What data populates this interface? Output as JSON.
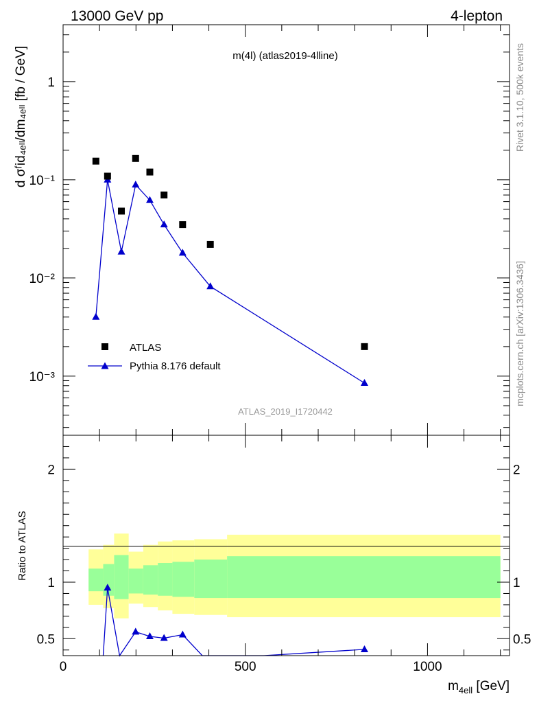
{
  "header": {
    "left": "13000 GeV pp",
    "right": "4-lepton"
  },
  "plot_title": "m(4l) (atlas2019-4lline)",
  "side_labels": {
    "upper": "Rivet 3.1.10,  500k events",
    "lower": "mcplots.cern.ch [arXiv:1306.3436]"
  },
  "analysis_id": "ATLAS_2019_I1720442",
  "colors": {
    "mc": "#0000cc",
    "band_inner": "#99ff99",
    "band_outer": "#ffff99"
  },
  "chart_data": [
    {
      "type": "scatter",
      "panel": "main",
      "ylabel": "d σᶠid₄ₑₗₗ/dm₄ₑₗₗ [fb / GeV]",
      "yscale": "log",
      "ylim": [
        0.00025,
        3.8
      ],
      "xlim": [
        0,
        1225
      ],
      "ytick_labels": [
        "1",
        "10⁻¹",
        "10⁻²",
        "10⁻³"
      ],
      "legend": {
        "position": "bottom-left"
      },
      "series": [
        {
          "name": "ATLAS",
          "marker": "square",
          "x": [
            90,
            122,
            160,
            199,
            238,
            277,
            328,
            404,
            827
          ],
          "y": [
            0.155,
            0.109,
            0.048,
            0.165,
            0.12,
            0.07,
            0.035,
            0.022,
            0.002
          ]
        },
        {
          "name": "Pythia 8.176 default",
          "marker": "triangle",
          "x": [
            90,
            122,
            160,
            199,
            238,
            277,
            328,
            404,
            827
          ],
          "y": [
            0.004,
            0.1,
            0.0185,
            0.089,
            0.062,
            0.035,
            0.018,
            0.0082,
            0.00085
          ]
        }
      ]
    },
    {
      "type": "line",
      "panel": "ratio",
      "ylabel": "Ratio to ATLAS",
      "xlabel": "m4ell [GeV]",
      "xlim": [
        0,
        1225
      ],
      "ylim": [
        0.35,
        2.3
      ],
      "xtick_labels": [
        "0",
        "500",
        "1000"
      ],
      "ytick_labels": [
        "0.5",
        "1",
        "2"
      ],
      "reference_line": 1.0,
      "bands": {
        "edges": [
          70,
          110,
          140,
          180,
          220,
          260,
          300,
          360,
          450,
          1200
        ],
        "outer_lo": [
          0.8,
          0.77,
          0.68,
          0.81,
          0.78,
          0.75,
          0.72,
          0.71,
          0.69
        ],
        "outer_hi": [
          1.29,
          1.33,
          1.43,
          1.27,
          1.33,
          1.36,
          1.37,
          1.38,
          1.42
        ],
        "inner_lo": [
          0.92,
          0.88,
          0.85,
          0.9,
          0.89,
          0.88,
          0.87,
          0.86,
          0.86
        ],
        "inner_hi": [
          1.12,
          1.16,
          1.24,
          1.12,
          1.15,
          1.17,
          1.18,
          1.2,
          1.23
        ]
      },
      "series": [
        {
          "name": "Pythia 8.176 default",
          "x": [
            110,
            122,
            155,
            199,
            238,
            277,
            328,
            382,
            550,
            827
          ],
          "y": [
            0.3,
            0.95,
            0.3,
            0.56,
            0.52,
            0.505,
            0.535,
            0.3,
            0.33,
            0.405
          ],
          "markers": [
            false,
            true,
            false,
            true,
            true,
            true,
            true,
            false,
            false,
            true
          ]
        }
      ]
    }
  ]
}
